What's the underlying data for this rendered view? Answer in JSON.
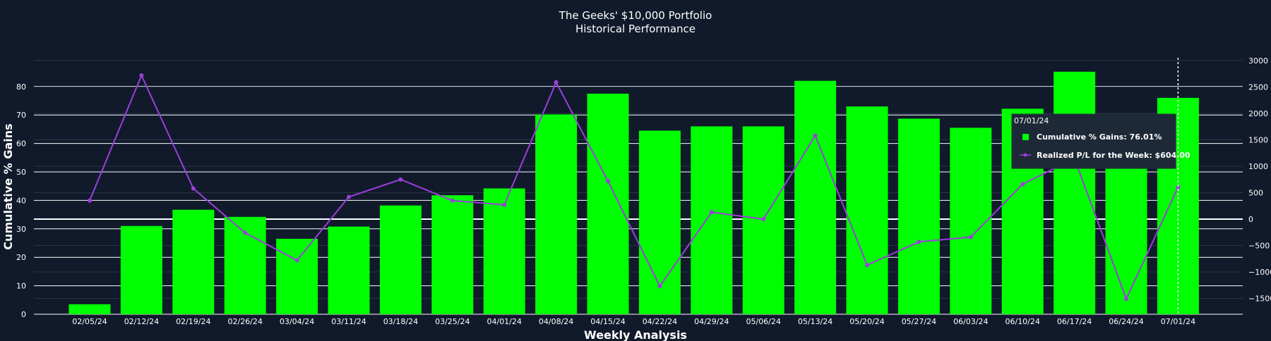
{
  "chart_data": {
    "type": "bar",
    "title": "The Geeks' $10,000 Portfolio",
    "subtitle": "Historical Performance",
    "xlabel": "Weekly Analysis",
    "ylabel": "Cumulative % Gains",
    "ylim": [
      0,
      90
    ],
    "y2lim": [
      -1800,
      3000
    ],
    "yticks": [
      "0",
      "10",
      "20",
      "30",
      "40",
      "50",
      "60",
      "70",
      "80"
    ],
    "y2ticks": [
      "−1500",
      "−1000",
      "−500",
      "0",
      "500",
      "1000",
      "1500",
      "2000",
      "2500",
      "3000"
    ],
    "categories": [
      "02/05/24",
      "02/12/24",
      "02/19/24",
      "02/26/24",
      "03/04/24",
      "03/11/24",
      "03/18/24",
      "03/25/24",
      "04/01/24",
      "04/08/24",
      "04/15/24",
      "04/22/24",
      "04/29/24",
      "05/06/24",
      "05/13/24",
      "05/20/24",
      "05/27/24",
      "06/03/24",
      "06/10/24",
      "06/17/24",
      "06/24/24",
      "07/01/24"
    ],
    "series": [
      {
        "name": "Cumulative % Gains",
        "type": "bar",
        "axis": "left",
        "color": "#00ff00",
        "values": [
          3.5,
          31,
          36.7,
          34.2,
          26.5,
          30.8,
          38.2,
          41.8,
          44.2,
          70.2,
          77.5,
          64.5,
          66,
          66,
          82,
          73,
          68.7,
          65.5,
          72.2,
          85.2,
          58,
          76.01
        ]
      },
      {
        "name": "Realized P/L for the Week",
        "type": "line",
        "axis": "right",
        "color": "#9b3fd9",
        "values": [
          350,
          2720,
          580,
          -260,
          -780,
          420,
          750,
          350,
          270,
          2590,
          720,
          -1270,
          130,
          0,
          1580,
          -870,
          -430,
          -340,
          660,
          1150,
          -1510,
          604
        ]
      }
    ],
    "hover": {
      "category": "07/01/24",
      "header": "07/01/24",
      "lines": [
        "Cumulative % Gains: 76.01%",
        "Realized P/L for the Week: $604.00"
      ]
    }
  }
}
